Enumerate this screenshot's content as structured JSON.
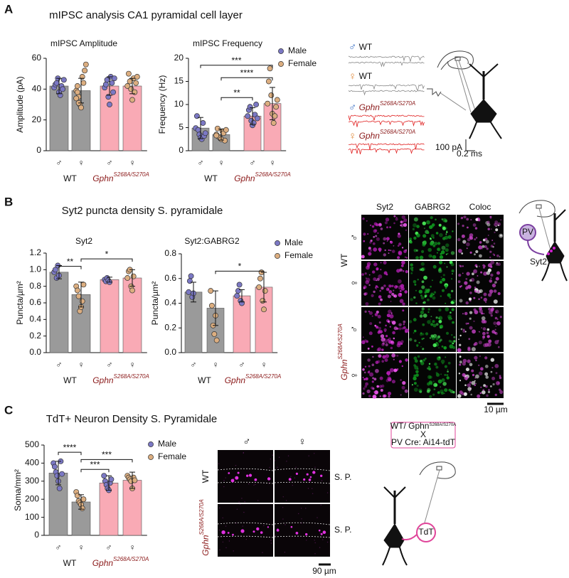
{
  "panels": [
    {
      "label": "A",
      "title": "mIPSC analysis CA1 pyramidal cell layer"
    },
    {
      "label": "B",
      "title": "Syt2 puncta density S. pyramidale"
    },
    {
      "label": "C",
      "title": "TdT+ Neuron Density S. Pyramidale"
    }
  ],
  "chart_data": [
    {
      "type": "bar",
      "title": "mIPSC Amplitude",
      "ylabel": "Amplitude (pA)",
      "ylim": [
        0,
        60
      ],
      "yticks": [
        0,
        20,
        40,
        60
      ],
      "categories": [
        "♂",
        "♀",
        "♂",
        "♀"
      ],
      "category_colors": [
        "#3b6fc4",
        "#e08a3c",
        "#3b6fc4",
        "#e08a3c"
      ],
      "groups": [
        {
          "label": "WT"
        },
        {
          "label": "Gphn",
          "sup": "S268A/S270A"
        }
      ],
      "values": [
        42,
        39,
        42,
        42
      ],
      "errors": [
        5,
        8,
        6,
        5
      ],
      "colors": [
        "#9a9a9a",
        "#9a9a9a",
        "#f9aab5",
        "#f9aab5"
      ],
      "series": [
        {
          "color": "#7b78c4",
          "values": [
            [
              41,
              43,
              44,
              47,
              38,
              36,
              42,
              40,
              46
            ],
            null,
            [
              41,
              43,
              46,
              35,
              30,
              48,
              44,
              38,
              47
            ],
            null
          ]
        },
        {
          "color": "#dcae80",
          "values": [
            null,
            [
              39,
              42,
              35,
              30,
              28,
              48,
              44,
              52,
              56,
              34,
              38,
              31
            ],
            null,
            [
              42,
              50,
              45,
              40,
              33,
              47,
              38,
              44,
              48
            ]
          ]
        }
      ],
      "annotations": []
    },
    {
      "type": "bar",
      "title": "mIPSC Frequency",
      "ylabel": "Frequency (Hz)",
      "ylim": [
        0,
        20
      ],
      "yticks": [
        0,
        5,
        10,
        15,
        20
      ],
      "categories": [
        "♂",
        "♀",
        "♂",
        "♀"
      ],
      "category_colors": [
        "#3b6fc4",
        "#e08a3c",
        "#3b6fc4",
        "#e08a3c"
      ],
      "groups": [
        {
          "label": "WT"
        },
        {
          "label": "Gphn",
          "sup": "S268A/S270A"
        }
      ],
      "values": [
        4.9,
        3.5,
        7.5,
        10.2
      ],
      "errors": [
        2.3,
        1.2,
        1.8,
        3.5
      ],
      "colors": [
        "#9a9a9a",
        "#9a9a9a",
        "#f9aab5",
        "#f9aab5"
      ],
      "legend": true,
      "series": [
        {
          "name": "Male",
          "color": "#7b78c4",
          "values": [
            [
              4.9,
              7.5,
              4.5,
              3.5,
              2.8,
              2.5,
              6,
              3.2,
              3.8
            ],
            null,
            [
              7.5,
              8.8,
              9.5,
              6.5,
              5.5,
              6,
              7.8,
              10,
              7
            ],
            null
          ]
        },
        {
          "name": "Female",
          "color": "#dcae80",
          "values": [
            null,
            [
              3.5,
              4.8,
              3,
              2.8,
              2.5,
              4.2,
              3.8,
              2.2,
              4.5,
              3.3
            ],
            null,
            [
              10.2,
              15,
              17.8,
              12,
              8,
              6,
              7.5,
              9.5,
              11
            ]
          ]
        }
      ],
      "annotations": [
        {
          "text": "***",
          "from": 0,
          "to": 3,
          "y": 18.5
        },
        {
          "text": "****",
          "from": 1,
          "to": 3,
          "y": 15.8
        },
        {
          "text": "**",
          "from": 1,
          "to": 2,
          "y": 11.5
        }
      ]
    },
    {
      "type": "bar",
      "title": "Syt2",
      "ylabel": "Puncta/µm²",
      "ylim": [
        0,
        1.2
      ],
      "yticks": [
        {
          "value": 0,
          "label": "0.0"
        },
        0.2,
        0.4,
        0.6,
        0.8,
        {
          "value": 1,
          "label": "1.0"
        },
        1.2
      ],
      "categories": [
        "♂",
        "♀",
        "♂",
        "♀"
      ],
      "category_colors": [
        "#3b6fc4",
        "#e08a3c",
        "#3b6fc4",
        "#e08a3c"
      ],
      "groups": [
        {
          "label": "WT"
        },
        {
          "label": "Gphn",
          "sup": "S268A/S270A"
        }
      ],
      "values": [
        0.97,
        0.7,
        0.88,
        0.9
      ],
      "errors": [
        0.08,
        0.15,
        0.03,
        0.1
      ],
      "colors": [
        "#9a9a9a",
        "#9a9a9a",
        "#f9aab5",
        "#f9aab5"
      ],
      "series": [
        {
          "color": "#7b78c4",
          "values": [
            [
              0.97,
              1.0,
              0.9,
              1.05,
              0.93
            ],
            null,
            [
              0.88,
              0.86,
              0.9,
              0.87,
              0.85
            ],
            null
          ]
        },
        {
          "color": "#dcae80",
          "values": [
            null,
            [
              0.8,
              0.75,
              0.68,
              0.5,
              0.55,
              0.62,
              0.82
            ],
            null,
            [
              0.9,
              0.98,
              1.0,
              0.8,
              0.75,
              0.92
            ]
          ]
        }
      ],
      "annotations": [
        {
          "text": "**",
          "from": 0,
          "to": 1,
          "y": 1.04
        },
        {
          "text": "*",
          "from": 1,
          "to": 3,
          "y": 1.13
        }
      ]
    },
    {
      "type": "bar",
      "title": "Syt2:GABRG2",
      "ylabel": "Puncta/µm²",
      "ylim": [
        0,
        0.8
      ],
      "yticks": [
        {
          "value": 0,
          "label": "0.0"
        },
        0.2,
        0.4,
        0.6,
        0.8
      ],
      "categories": [
        "♂",
        "♀",
        "♂",
        "♀"
      ],
      "category_colors": [
        "#3b6fc4",
        "#e08a3c",
        "#3b6fc4",
        "#e08a3c"
      ],
      "groups": [
        {
          "label": "WT"
        },
        {
          "label": "Gphn",
          "sup": "S268A/S270A"
        }
      ],
      "values": [
        0.49,
        0.36,
        0.46,
        0.53
      ],
      "errors": [
        0.08,
        0.14,
        0.05,
        0.12
      ],
      "colors": [
        "#9a9a9a",
        "#9a9a9a",
        "#f9aab5",
        "#f9aab5"
      ],
      "legend": true,
      "series": [
        {
          "name": "Male",
          "color": "#7b78c4",
          "values": [
            [
              0.49,
              0.58,
              0.62,
              0.45,
              0.48
            ],
            null,
            [
              0.46,
              0.5,
              0.55,
              0.42,
              0.4
            ],
            null
          ]
        },
        {
          "name": "Female",
          "color": "#dcae80",
          "values": [
            null,
            [
              0.5,
              0.38,
              0.22,
              0.15,
              0.3,
              0.1
            ],
            null,
            [
              0.53,
              0.6,
              0.65,
              0.42,
              0.35,
              0.5
            ]
          ]
        }
      ],
      "annotations": [
        {
          "text": "*",
          "from": 1,
          "to": 3,
          "y": 0.66
        }
      ]
    },
    {
      "type": "bar",
      "ylabel": "Soma/mm²",
      "ylim": [
        0,
        500
      ],
      "yticks": [
        0,
        100,
        200,
        300,
        400,
        500
      ],
      "categories": [
        "♂",
        "♀",
        "♂",
        "♀"
      ],
      "category_colors": [
        "#3b6fc4",
        "#e08a3c",
        "#3b6fc4",
        "#e08a3c"
      ],
      "groups": [
        {
          "label": "WT"
        },
        {
          "label": "Gphn",
          "sup": "S268A/S270A"
        }
      ],
      "values": [
        345,
        185,
        290,
        305
      ],
      "errors": [
        65,
        40,
        40,
        45
      ],
      "colors": [
        "#9a9a9a",
        "#9a9a9a",
        "#f9aab5",
        "#f9aab5"
      ],
      "legend": true,
      "series": [
        {
          "name": "Male",
          "color": "#7b78c4",
          "values": [
            [
              400,
              380,
              350,
              330,
              300,
              260,
              410,
              340
            ],
            null,
            [
              330,
              300,
              280,
              260,
              250,
              290,
              310
            ],
            null
          ]
        },
        {
          "name": "Female",
          "color": "#dcae80",
          "values": [
            null,
            [
              240,
              220,
              190,
              180,
              170,
              150,
              200
            ],
            null,
            [
              330,
              320,
              310,
              300,
              260,
              320,
              305
            ]
          ]
        }
      ],
      "annotations": [
        {
          "text": "****",
          "from": 0,
          "to": 1,
          "y": 460
        },
        {
          "text": "***",
          "from": 1,
          "to": 3,
          "y": 420
        },
        {
          "text": "***",
          "from": 1,
          "to": 2,
          "y": 365
        }
      ]
    }
  ],
  "traces": {
    "rows": [
      {
        "sex": "♂",
        "genotype": "WT"
      },
      {
        "sex": "♀",
        "genotype": "WT"
      },
      {
        "sex": "♂",
        "genotype": "Gphn",
        "sup": "S268A/S270A"
      },
      {
        "sex": "♀",
        "genotype": "Gphn",
        "sup": "S268A/S270A"
      }
    ],
    "scale_y": "100 pA",
    "scale_x": "0.2 ms"
  },
  "micrograph_b": {
    "columns": [
      "Syt2",
      "GABRG2",
      "Coloc"
    ],
    "genotypes": [
      {
        "label": "WT"
      },
      {
        "label": "Gphn",
        "sup": "S268A/S270A"
      }
    ],
    "sexes": [
      "♂",
      "♀",
      "♂",
      "♀"
    ],
    "scale": "10 µm"
  },
  "schematic_b": {
    "pv": "PV",
    "syt2": "Syt2"
  },
  "micrograph_c": {
    "columns": [
      "♂",
      "♀"
    ],
    "genotypes": [
      {
        "label": "WT"
      },
      {
        "label": "Gphn",
        "sup": "S268A/S270A"
      }
    ],
    "layer": [
      "S. P.",
      "S. P."
    ],
    "scale": "90 µm"
  },
  "schematic_c": {
    "line1": "WT/ Gphn",
    "sup": "S268A/S270A",
    "cross": "X",
    "line2": "PV Cre: Ai14-tdT",
    "tdt": "TdT"
  }
}
